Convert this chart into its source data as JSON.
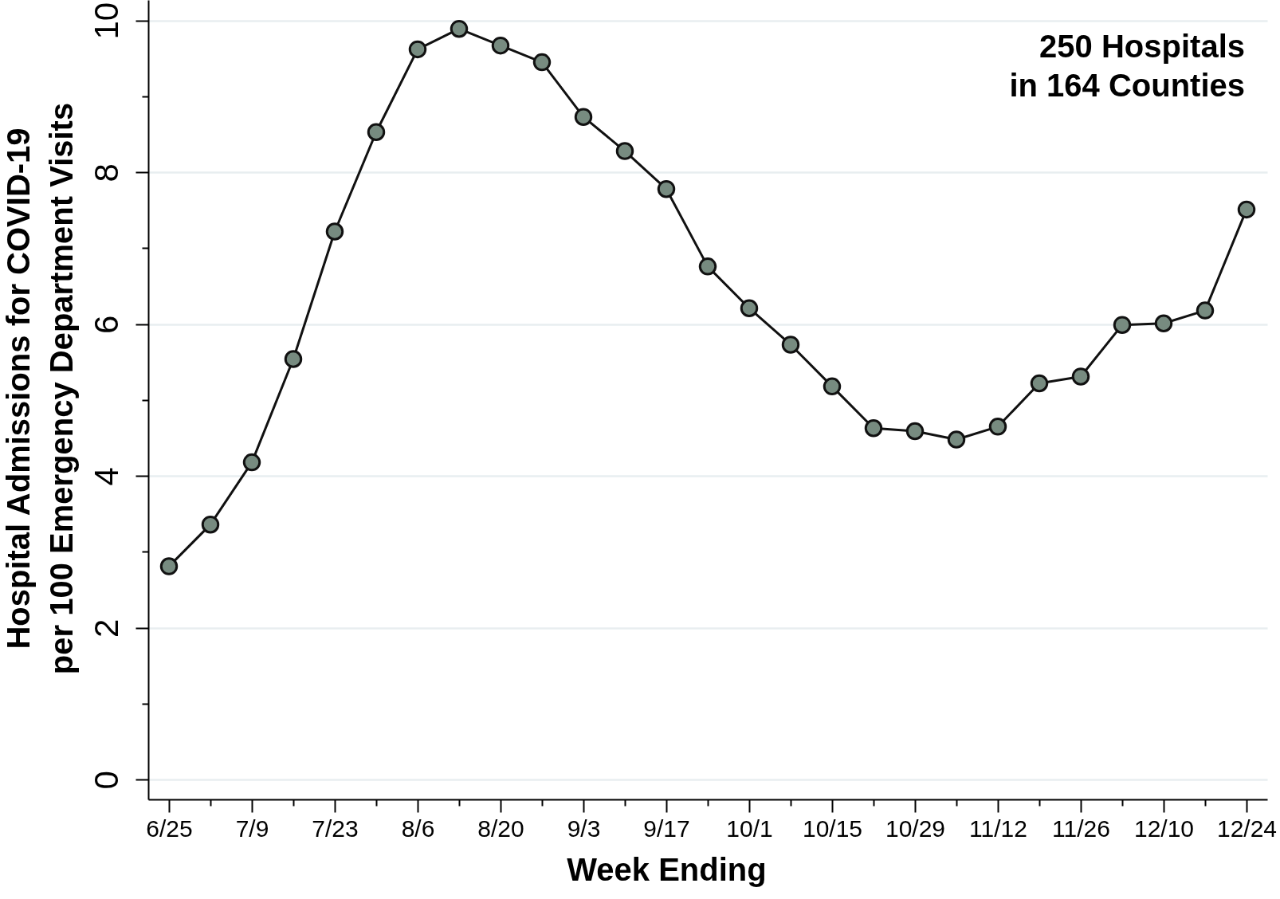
{
  "chart_data": {
    "type": "line",
    "xlabel": "Week Ending",
    "ylabel": "Hospital Admissions for COVID-19\nper 100 Emergency Department Visits",
    "categories": [
      "6/25",
      null,
      "7/9",
      null,
      "7/23",
      null,
      "8/6",
      null,
      "8/20",
      null,
      "9/3",
      null,
      "9/17",
      null,
      "10/1",
      null,
      "10/15",
      null,
      "10/29",
      null,
      "11/12",
      null,
      "11/26",
      null,
      "12/10",
      null,
      "12/24"
    ],
    "series": [
      {
        "color": "#778b80",
        "values": [
          2.81,
          3.36,
          4.18,
          5.54,
          7.22,
          8.53,
          9.62,
          9.89,
          9.67,
          9.45,
          8.73,
          8.28,
          7.78,
          6.76,
          6.21,
          5.73,
          5.18,
          4.63,
          4.59,
          4.48,
          4.65,
          5.22,
          5.31,
          5.99,
          6.01,
          6.18,
          7.51
        ]
      }
    ],
    "ylim": [
      -0.26,
      10.27
    ],
    "yticks": [
      0,
      {
        "value": 1,
        "label": null
      },
      2,
      {
        "value": 3,
        "label": null
      },
      4,
      {
        "value": 5,
        "label": null
      },
      6,
      {
        "value": 7,
        "label": null
      },
      8,
      {
        "value": 9,
        "label": null
      },
      10
    ],
    "grid": "y",
    "marker": "circle",
    "line_style": "solid",
    "annotations": [
      "250 Hospitals\nin 164 Counties"
    ]
  }
}
